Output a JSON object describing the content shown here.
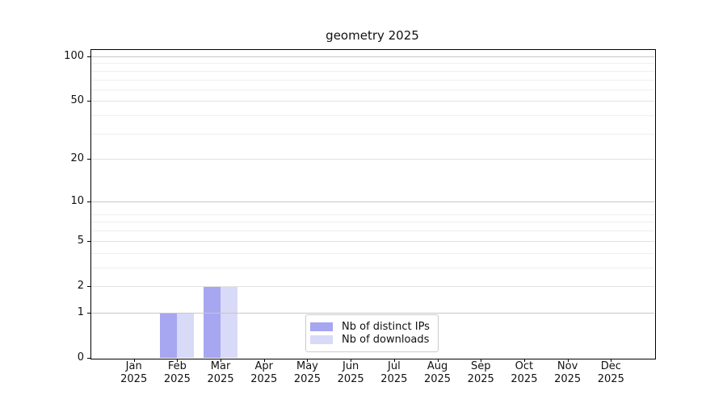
{
  "chart_data": {
    "type": "bar",
    "title": "geometry 2025",
    "categories": [
      "Jan",
      "Feb",
      "Mar",
      "Apr",
      "May",
      "Jun",
      "Jul",
      "Aug",
      "Sep",
      "Oct",
      "Nov",
      "Dec"
    ],
    "category_year": "2025",
    "series": [
      {
        "name": "Nb of distinct IPs",
        "color": "#a6a6f1",
        "values": [
          0,
          1,
          2,
          0,
          0,
          0,
          0,
          0,
          0,
          0,
          0,
          0
        ]
      },
      {
        "name": "Nb of downloads",
        "color": "#d9d9f8",
        "values": [
          0,
          1,
          2,
          0,
          0,
          0,
          0,
          0,
          0,
          0,
          0,
          0
        ]
      }
    ],
    "y_axis": {
      "scale": "log10(value+1)",
      "ticks": [
        0,
        1,
        2,
        5,
        10,
        20,
        50,
        100
      ],
      "range": [
        0,
        116
      ]
    },
    "x_axis": {
      "tick_label_format": "month over year"
    },
    "legend": {
      "position": "lower center"
    },
    "grid": "horizontal, log minor + labeled major"
  }
}
